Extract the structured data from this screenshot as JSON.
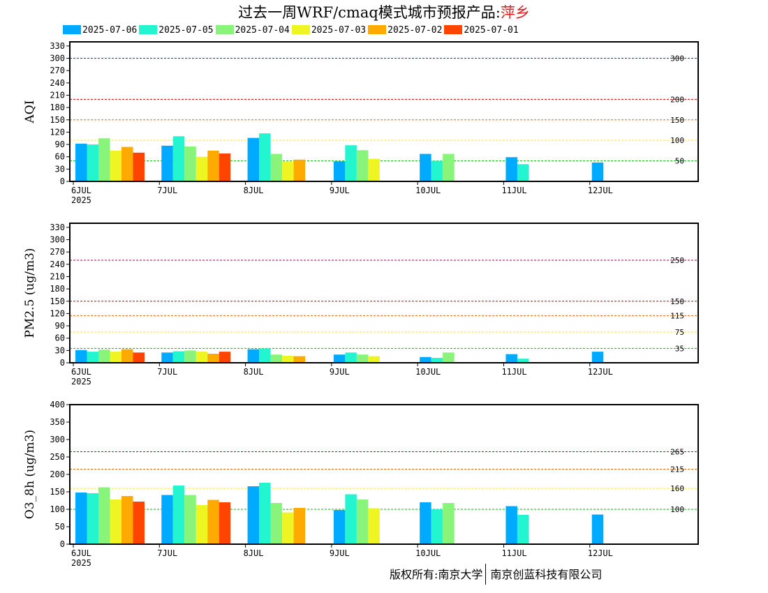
{
  "title": {
    "prefix": "过去一周WRF/cmaq模式城市预报产品:",
    "city": "萍乡"
  },
  "footer": {
    "left": "版权所有:南京大学",
    "right": "南京创蓝科技有限公司"
  },
  "legend": [
    {
      "name": "2025-07-06",
      "color": "#00aaff"
    },
    {
      "name": "2025-07-05",
      "color": "#22f5d0"
    },
    {
      "name": "2025-07-04",
      "color": "#88f57a"
    },
    {
      "name": "2025-07-03",
      "color": "#eef522"
    },
    {
      "name": "2025-07-02",
      "color": "#ffaa00"
    },
    {
      "name": "2025-07-01",
      "color": "#ff4400"
    }
  ],
  "chart_data": [
    {
      "type": "bar",
      "ylabel": "AQI",
      "ylim": [
        0,
        340
      ],
      "yticks": [
        0,
        30,
        60,
        90,
        120,
        150,
        180,
        210,
        240,
        270,
        300,
        330
      ],
      "categories": [
        "6JUL",
        "7JUL",
        "8JUL",
        "9JUL",
        "10JUL",
        "11JUL",
        "12JUL"
      ],
      "year_label": "2025",
      "thresholds": [
        {
          "value": 300,
          "label": "300",
          "color": "#aa0044"
        },
        {
          "value": 200,
          "label": "200",
          "color": "#cc0000"
        },
        {
          "value": 150,
          "label": "150",
          "color": "#ee6600"
        },
        {
          "value": 100,
          "label": "100",
          "color": "#ffee00"
        },
        {
          "value": 50,
          "label": "50",
          "color": "#00bb00"
        }
      ],
      "series": [
        {
          "name": "2025-07-06",
          "values": [
            92,
            87,
            106,
            49,
            67,
            59,
            46
          ]
        },
        {
          "name": "2025-07-05",
          "values": [
            90,
            110,
            117,
            88,
            50,
            42,
            null
          ]
        },
        {
          "name": "2025-07-04",
          "values": [
            105,
            85,
            67,
            76,
            67,
            null,
            null
          ]
        },
        {
          "name": "2025-07-03",
          "values": [
            75,
            60,
            48,
            55,
            null,
            null,
            null
          ]
        },
        {
          "name": "2025-07-02",
          "values": [
            84,
            75,
            53,
            null,
            null,
            null,
            null
          ]
        },
        {
          "name": "2025-07-01",
          "values": [
            70,
            68,
            null,
            null,
            null,
            null,
            null
          ]
        }
      ]
    },
    {
      "type": "bar",
      "ylabel": "PM2.5 (ug/m3)",
      "ylim": [
        0,
        340
      ],
      "yticks": [
        0,
        30,
        60,
        90,
        120,
        150,
        180,
        210,
        240,
        270,
        300,
        330
      ],
      "categories": [
        "6JUL",
        "7JUL",
        "8JUL",
        "9JUL",
        "10JUL",
        "11JUL",
        "12JUL"
      ],
      "year_label": "2025",
      "thresholds": [
        {
          "value": 250,
          "label": "250",
          "color": "#aa0044"
        },
        {
          "value": 150,
          "label": "150",
          "color": "#cc0000"
        },
        {
          "value": 115,
          "label": "115",
          "color": "#ee6600"
        },
        {
          "value": 75,
          "label": "75",
          "color": "#ffee00"
        },
        {
          "value": 35,
          "label": "35",
          "color": "#00bb00"
        }
      ],
      "series": [
        {
          "name": "2025-07-06",
          "values": [
            31,
            25,
            33,
            20,
            14,
            21,
            27
          ]
        },
        {
          "name": "2025-07-05",
          "values": [
            27,
            28,
            35,
            25,
            12,
            10,
            null
          ]
        },
        {
          "name": "2025-07-04",
          "values": [
            32,
            30,
            20,
            20,
            25,
            null,
            null
          ]
        },
        {
          "name": "2025-07-03",
          "values": [
            27,
            27,
            17,
            16,
            null,
            null,
            null
          ]
        },
        {
          "name": "2025-07-02",
          "values": [
            33,
            22,
            16,
            null,
            null,
            null,
            null
          ]
        },
        {
          "name": "2025-07-01",
          "values": [
            25,
            27,
            null,
            null,
            null,
            null,
            null
          ]
        }
      ]
    },
    {
      "type": "bar",
      "ylabel": "O3_8h (ug/m3)",
      "ylim": [
        0,
        400
      ],
      "yticks": [
        0,
        50,
        100,
        150,
        200,
        250,
        300,
        350,
        400
      ],
      "categories": [
        "6JUL",
        "7JUL",
        "8JUL",
        "9JUL",
        "10JUL",
        "11JUL",
        "12JUL"
      ],
      "year_label": "2025",
      "thresholds": [
        {
          "value": 265,
          "label": "265",
          "color": "#cc0000"
        },
        {
          "value": 215,
          "label": "215",
          "color": "#ee6600"
        },
        {
          "value": 160,
          "label": "160",
          "color": "#ffee00"
        },
        {
          "value": 100,
          "label": "100",
          "color": "#00bb00"
        }
      ],
      "series": [
        {
          "name": "2025-07-06",
          "values": [
            148,
            141,
            166,
            98,
            120,
            109,
            85
          ]
        },
        {
          "name": "2025-07-05",
          "values": [
            146,
            168,
            176,
            143,
            100,
            84,
            null
          ]
        },
        {
          "name": "2025-07-04",
          "values": [
            163,
            141,
            118,
            128,
            118,
            null,
            null
          ]
        },
        {
          "name": "2025-07-03",
          "values": [
            128,
            112,
            91,
            103,
            null,
            null,
            null
          ]
        },
        {
          "name": "2025-07-02",
          "values": [
            138,
            127,
            104,
            null,
            null,
            null,
            null
          ]
        },
        {
          "name": "2025-07-01",
          "values": [
            122,
            120,
            null,
            null,
            null,
            null,
            null
          ]
        }
      ]
    }
  ]
}
